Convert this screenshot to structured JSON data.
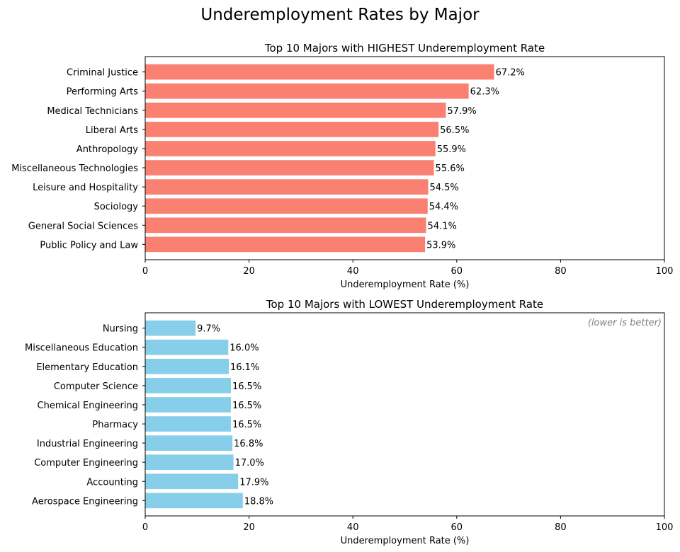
{
  "figure": {
    "title": "Underemployment Rates by Major"
  },
  "chart_data": [
    {
      "type": "bar",
      "orientation": "horizontal",
      "title": "Top 10 Majors with HIGHEST Underemployment Rate",
      "xlabel": "Underemployment Rate (%)",
      "ylabel": "",
      "xlim": [
        0,
        100
      ],
      "xticks": [
        0,
        20,
        40,
        60,
        80,
        100
      ],
      "bar_color": "#fa8072",
      "annotation": "",
      "categories": [
        "Criminal Justice",
        "Performing Arts",
        "Medical Technicians",
        "Liberal Arts",
        "Anthropology",
        "Miscellaneous Technologies",
        "Leisure and Hospitality",
        "Sociology",
        "General Social Sciences",
        "Public Policy and Law"
      ],
      "values": [
        67.2,
        62.3,
        57.9,
        56.5,
        55.9,
        55.6,
        54.5,
        54.4,
        54.1,
        53.9
      ],
      "value_labels": [
        "67.2%",
        "62.3%",
        "57.9%",
        "56.5%",
        "55.9%",
        "55.6%",
        "54.5%",
        "54.4%",
        "54.1%",
        "53.9%"
      ]
    },
    {
      "type": "bar",
      "orientation": "horizontal",
      "title": "Top 10 Majors with LOWEST Underemployment Rate",
      "xlabel": "Underemployment Rate (%)",
      "ylabel": "",
      "xlim": [
        0,
        100
      ],
      "xticks": [
        0,
        20,
        40,
        60,
        80,
        100
      ],
      "bar_color": "#87ceeb",
      "annotation": "(lower is better)",
      "categories": [
        "Nursing",
        "Miscellaneous Education",
        "Elementary Education",
        "Computer Science",
        "Chemical Engineering",
        "Pharmacy",
        "Industrial Engineering",
        "Computer Engineering",
        "Accounting",
        "Aerospace Engineering"
      ],
      "values": [
        9.7,
        16.0,
        16.1,
        16.5,
        16.5,
        16.5,
        16.8,
        17.0,
        17.9,
        18.8
      ],
      "value_labels": [
        "9.7%",
        "16.0%",
        "16.1%",
        "16.5%",
        "16.5%",
        "16.5%",
        "16.8%",
        "17.0%",
        "17.9%",
        "18.8%"
      ]
    }
  ]
}
